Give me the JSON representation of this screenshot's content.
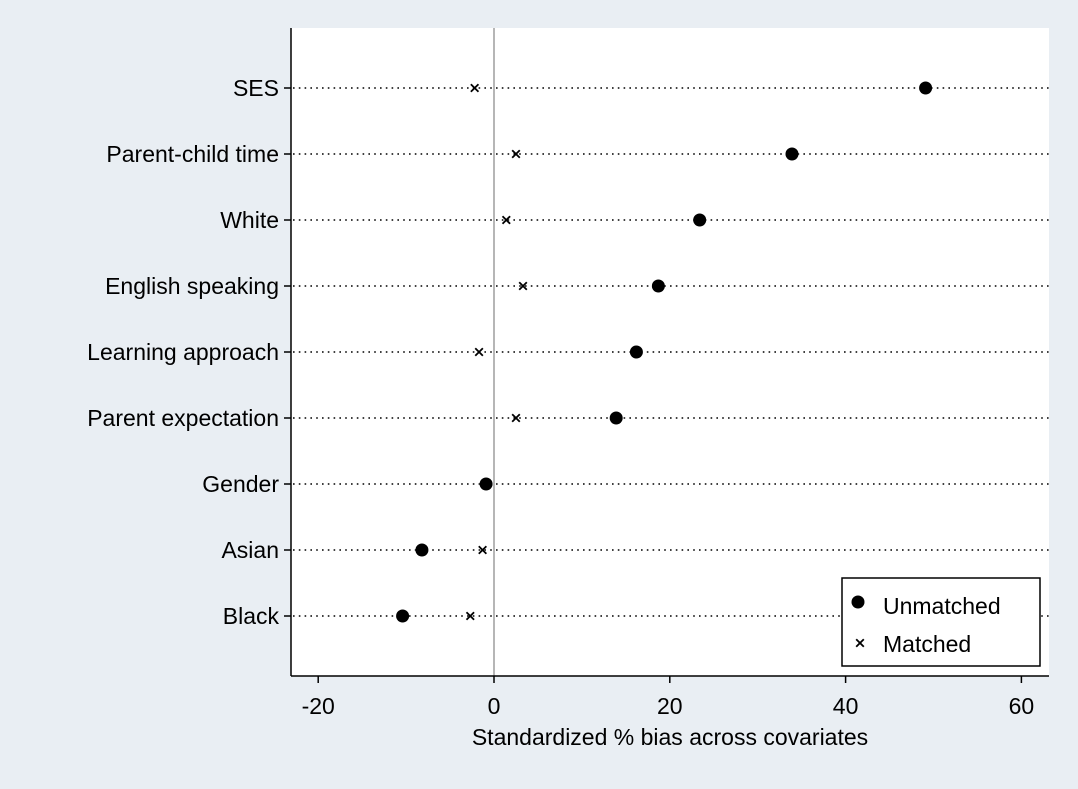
{
  "chart_data": {
    "type": "scatter",
    "orientation": "horizontal-dot-plot",
    "xlabel": "Standardized % bias across covariates",
    "xlim": [
      -23,
      63
    ],
    "xticks": [
      -20,
      0,
      20,
      40,
      60
    ],
    "reference_line_x": 0,
    "grid": "dotted horizontal lines per category",
    "legend_position": "bottom-right",
    "categories": [
      "SES",
      "Parent-child time",
      "White",
      "English speaking",
      "Learning approach ",
      "Parent expectation",
      "Gender",
      "Asian",
      "Black"
    ],
    "series": [
      {
        "name": "Unmatched",
        "marker": "circle",
        "values": [
          49.1,
          33.9,
          23.4,
          18.7,
          16.2,
          13.9,
          -0.9,
          -8.2,
          -10.4
        ]
      },
      {
        "name": "Matched",
        "marker": "x",
        "values": [
          -2.2,
          2.5,
          1.4,
          3.3,
          -1.7,
          2.5,
          -0.8,
          -1.3,
          -2.7
        ]
      }
    ],
    "colors": {
      "background": "#e9eef3",
      "plot_area": "#ffffff",
      "markers": "#000000",
      "zero_line": "#9e9e9e"
    }
  }
}
